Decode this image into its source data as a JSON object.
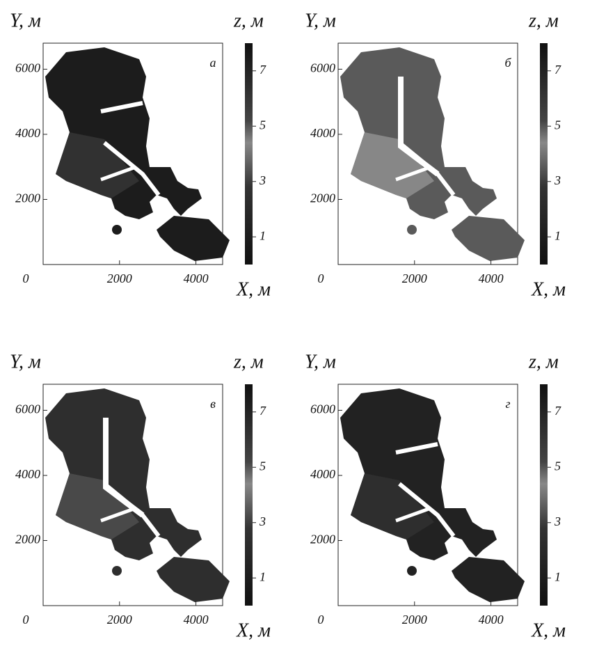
{
  "chart_data": [
    {
      "type": "map",
      "panel_label": "а",
      "x_label": "X, м",
      "y_label": "Y, м",
      "colorbar_label": "z, м",
      "xlim": [
        0,
        4700
      ],
      "ylim": [
        0,
        6800
      ],
      "xticks": [
        0,
        2000,
        4000
      ],
      "yticks": [
        2000,
        4000,
        6000
      ],
      "clim": [
        0,
        8
      ],
      "cticks": [
        1,
        3,
        5,
        7
      ],
      "color": "#1c1c1c"
    },
    {
      "type": "map",
      "panel_label": "б",
      "x_label": "X, м",
      "y_label": "Y, м",
      "colorbar_label": "z, м",
      "xlim": [
        0,
        4700
      ],
      "ylim": [
        0,
        6800
      ],
      "xticks": [
        0,
        2000,
        4000
      ],
      "yticks": [
        2000,
        4000,
        6000
      ],
      "clim": [
        0,
        8
      ],
      "cticks": [
        1,
        3,
        5,
        7
      ],
      "color": "#5a5a5a"
    },
    {
      "type": "map",
      "panel_label": "в",
      "x_label": "X, м",
      "y_label": "Y, м",
      "colorbar_label": "z, м",
      "xlim": [
        0,
        4700
      ],
      "ylim": [
        0,
        6800
      ],
      "xticks": [
        0,
        2000,
        4000
      ],
      "yticks": [
        2000,
        4000,
        6000
      ],
      "clim": [
        0,
        8
      ],
      "cticks": [
        1,
        3,
        5,
        7
      ],
      "color": "#2e2e2e"
    },
    {
      "type": "map",
      "panel_label": "г",
      "x_label": "X, м",
      "y_label": "Y, м",
      "colorbar_label": "z, м",
      "xlim": [
        0,
        4700
      ],
      "ylim": [
        0,
        6800
      ],
      "xticks": [
        0,
        2000,
        4000
      ],
      "yticks": [
        2000,
        4000,
        6000
      ],
      "clim": [
        0,
        8
      ],
      "cticks": [
        1,
        3,
        5,
        7
      ],
      "color": "#222222"
    }
  ]
}
